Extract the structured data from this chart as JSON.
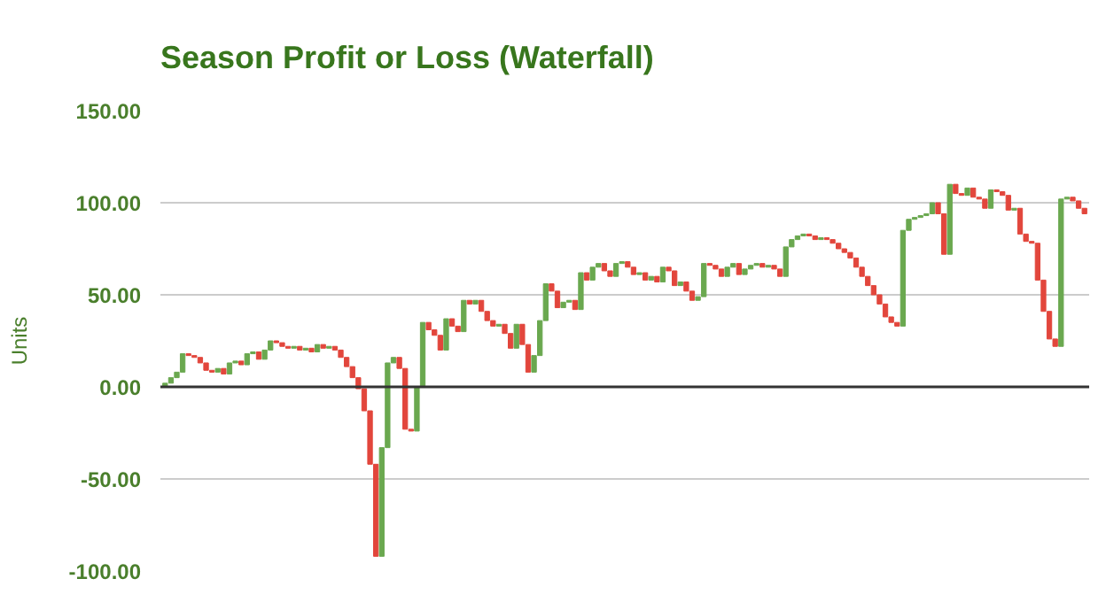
{
  "chart_data": {
    "type": "bar",
    "title": "Season Profit or Loss (Waterfall)",
    "ylabel": "Units",
    "categories": [
      null,
      null,
      null,
      null,
      null,
      null,
      null,
      null,
      null,
      null,
      null,
      null,
      null,
      null,
      null,
      null,
      null,
      null,
      null,
      null,
      null,
      null,
      null,
      null,
      null,
      null,
      null,
      null,
      null,
      null,
      null,
      null,
      null,
      null,
      null,
      null,
      null,
      null,
      null,
      null,
      null,
      null,
      null,
      null,
      null,
      null,
      null,
      null,
      null,
      null,
      null,
      null,
      null,
      null,
      null,
      null,
      null,
      null,
      null,
      null,
      null,
      null,
      null,
      null,
      null,
      null,
      null,
      null,
      null,
      null,
      null,
      null,
      null,
      null,
      null,
      null,
      null,
      null,
      null,
      null,
      null,
      null,
      null,
      null,
      null,
      null,
      null,
      null,
      null,
      null,
      null,
      null,
      null,
      null,
      null,
      null,
      null,
      null,
      null,
      null,
      null,
      null,
      null,
      null,
      null,
      null,
      null,
      null,
      null,
      null,
      null,
      null,
      null,
      null,
      null,
      null,
      null,
      null,
      null,
      null,
      null,
      null,
      null,
      null,
      null,
      null,
      null,
      null,
      null,
      null,
      null,
      null,
      null,
      null,
      null,
      null,
      null,
      null,
      null,
      null,
      null,
      null,
      null,
      null,
      null,
      null,
      null,
      null,
      null,
      null,
      null,
      null,
      null,
      null,
      null,
      null,
      null,
      null
    ],
    "base": [
      0,
      2,
      5,
      8,
      18,
      17,
      16,
      13,
      9,
      8,
      10,
      7,
      13,
      14,
      12,
      18,
      19,
      15,
      20,
      25,
      24,
      22,
      21,
      22,
      20,
      21,
      19,
      23,
      21,
      22,
      20,
      16,
      11,
      5,
      -1,
      -13,
      -42,
      -92,
      -33,
      13,
      16,
      10,
      -23,
      -24,
      0,
      35,
      31,
      28,
      20,
      37,
      33,
      30,
      47,
      45,
      47,
      41,
      36,
      33,
      34,
      29,
      21,
      34,
      23,
      8,
      17,
      36,
      56,
      52,
      43,
      46,
      47,
      42,
      62,
      58,
      65,
      67,
      63,
      60,
      67,
      68,
      65,
      61,
      62,
      58,
      60,
      57,
      65,
      63,
      55,
      57,
      52,
      47,
      49,
      67,
      66,
      64,
      60,
      65,
      67,
      61,
      64,
      66,
      67,
      65,
      66,
      64,
      60,
      76,
      80,
      82,
      83,
      82,
      80,
      81,
      80,
      78,
      75,
      73,
      70,
      65,
      60,
      55,
      50,
      45,
      38,
      35,
      33,
      85,
      91,
      92,
      93,
      94,
      100,
      94,
      72,
      110,
      105,
      104,
      108,
      103,
      102,
      97,
      107,
      106,
      104,
      96,
      97,
      83,
      79,
      78,
      58,
      41,
      26,
      22,
      102,
      103,
      101,
      97
    ],
    "values": [
      2,
      3,
      3,
      10,
      -1,
      -1,
      -3,
      -4,
      -1,
      2,
      -3,
      6,
      1,
      -2,
      6,
      1,
      -4,
      5,
      5,
      -1,
      -2,
      -1,
      1,
      -2,
      1,
      -2,
      4,
      -2,
      1,
      -2,
      -4,
      -5,
      -6,
      -6,
      -12,
      -29,
      -50,
      59,
      46,
      3,
      -6,
      -33,
      -1,
      24,
      35,
      -4,
      -3,
      -8,
      17,
      -4,
      -3,
      17,
      -2,
      2,
      -6,
      -5,
      -3,
      1,
      -5,
      -8,
      13,
      -11,
      -15,
      9,
      19,
      20,
      -4,
      -9,
      3,
      1,
      -5,
      20,
      -4,
      7,
      2,
      -4,
      -3,
      7,
      1,
      -3,
      -4,
      1,
      -4,
      2,
      -3,
      8,
      -2,
      -8,
      2,
      -5,
      -5,
      2,
      18,
      -1,
      -2,
      -4,
      5,
      2,
      -6,
      3,
      2,
      1,
      -2,
      1,
      -2,
      -4,
      16,
      4,
      2,
      1,
      -1,
      -2,
      1,
      -1,
      -2,
      -3,
      -2,
      -3,
      -5,
      -5,
      -5,
      -5,
      -5,
      -7,
      -3,
      -2,
      52,
      6,
      1,
      1,
      1,
      6,
      -6,
      -22,
      38,
      -5,
      -1,
      4,
      -5,
      -1,
      -5,
      10,
      -1,
      -2,
      -8,
      1,
      -14,
      -4,
      -1,
      -20,
      -17,
      -15,
      -4,
      80,
      1,
      -2,
      -4,
      -3
    ],
    "colors": [
      "#6aa84f",
      "#6aa84f",
      "#6aa84f",
      "#6aa84f",
      "#e2463c",
      "#e2463c",
      "#e2463c",
      "#e2463c",
      "#e2463c",
      "#6aa84f",
      "#e2463c",
      "#6aa84f",
      "#6aa84f",
      "#e2463c",
      "#6aa84f",
      "#6aa84f",
      "#e2463c",
      "#6aa84f",
      "#6aa84f",
      "#e2463c",
      "#e2463c",
      "#e2463c",
      "#6aa84f",
      "#e2463c",
      "#6aa84f",
      "#e2463c",
      "#6aa84f",
      "#e2463c",
      "#6aa84f",
      "#e2463c",
      "#e2463c",
      "#e2463c",
      "#e2463c",
      "#e2463c",
      "#e2463c",
      "#e2463c",
      "#e2463c",
      "#6aa84f",
      "#6aa84f",
      "#6aa84f",
      "#e2463c",
      "#e2463c",
      "#e2463c",
      "#6aa84f",
      "#6aa84f",
      "#e2463c",
      "#e2463c",
      "#e2463c",
      "#6aa84f",
      "#e2463c",
      "#e2463c",
      "#6aa84f",
      "#e2463c",
      "#6aa84f",
      "#e2463c",
      "#e2463c",
      "#e2463c",
      "#6aa84f",
      "#e2463c",
      "#e2463c",
      "#6aa84f",
      "#e2463c",
      "#e2463c",
      "#6aa84f",
      "#6aa84f",
      "#6aa84f",
      "#e2463c",
      "#e2463c",
      "#6aa84f",
      "#6aa84f",
      "#e2463c",
      "#6aa84f",
      "#e2463c",
      "#6aa84f",
      "#6aa84f",
      "#e2463c",
      "#e2463c",
      "#6aa84f",
      "#6aa84f",
      "#e2463c",
      "#e2463c",
      "#6aa84f",
      "#e2463c",
      "#6aa84f",
      "#e2463c",
      "#6aa84f",
      "#e2463c",
      "#e2463c",
      "#6aa84f",
      "#e2463c",
      "#e2463c",
      "#6aa84f",
      "#6aa84f",
      "#e2463c",
      "#e2463c",
      "#e2463c",
      "#6aa84f",
      "#6aa84f",
      "#e2463c",
      "#6aa84f",
      "#6aa84f",
      "#6aa84f",
      "#e2463c",
      "#6aa84f",
      "#e2463c",
      "#e2463c",
      "#6aa84f",
      "#6aa84f",
      "#6aa84f",
      "#6aa84f",
      "#e2463c",
      "#e2463c",
      "#6aa84f",
      "#e2463c",
      "#e2463c",
      "#e2463c",
      "#e2463c",
      "#e2463c",
      "#e2463c",
      "#e2463c",
      "#e2463c",
      "#e2463c",
      "#e2463c",
      "#e2463c",
      "#e2463c",
      "#e2463c",
      "#6aa84f",
      "#6aa84f",
      "#6aa84f",
      "#6aa84f",
      "#6aa84f",
      "#6aa84f",
      "#e2463c",
      "#e2463c",
      "#6aa84f",
      "#e2463c",
      "#e2463c",
      "#6aa84f",
      "#e2463c",
      "#e2463c",
      "#e2463c",
      "#6aa84f",
      "#e2463c",
      "#e2463c",
      "#e2463c",
      "#6aa84f",
      "#e2463c",
      "#e2463c",
      "#e2463c",
      "#e2463c",
      "#e2463c",
      "#e2463c",
      "#e2463c",
      "#6aa84f",
      "#6aa84f",
      "#e2463c",
      "#e2463c",
      "#e2463c"
    ],
    "ylim": [
      -100,
      150
    ],
    "yticks": [
      {
        "value": -100,
        "label": "-100.00"
      },
      {
        "value": -50,
        "label": "-50.00"
      },
      {
        "value": 0,
        "label": "0.00"
      },
      {
        "value": 50,
        "label": "50.00"
      },
      {
        "value": 100,
        "label": "100.00"
      },
      {
        "value": 150,
        "label": "150.00"
      }
    ],
    "ref_lines": [
      {
        "axis": "y",
        "value": 0,
        "color": "#333333"
      }
    ],
    "grid": "y"
  }
}
